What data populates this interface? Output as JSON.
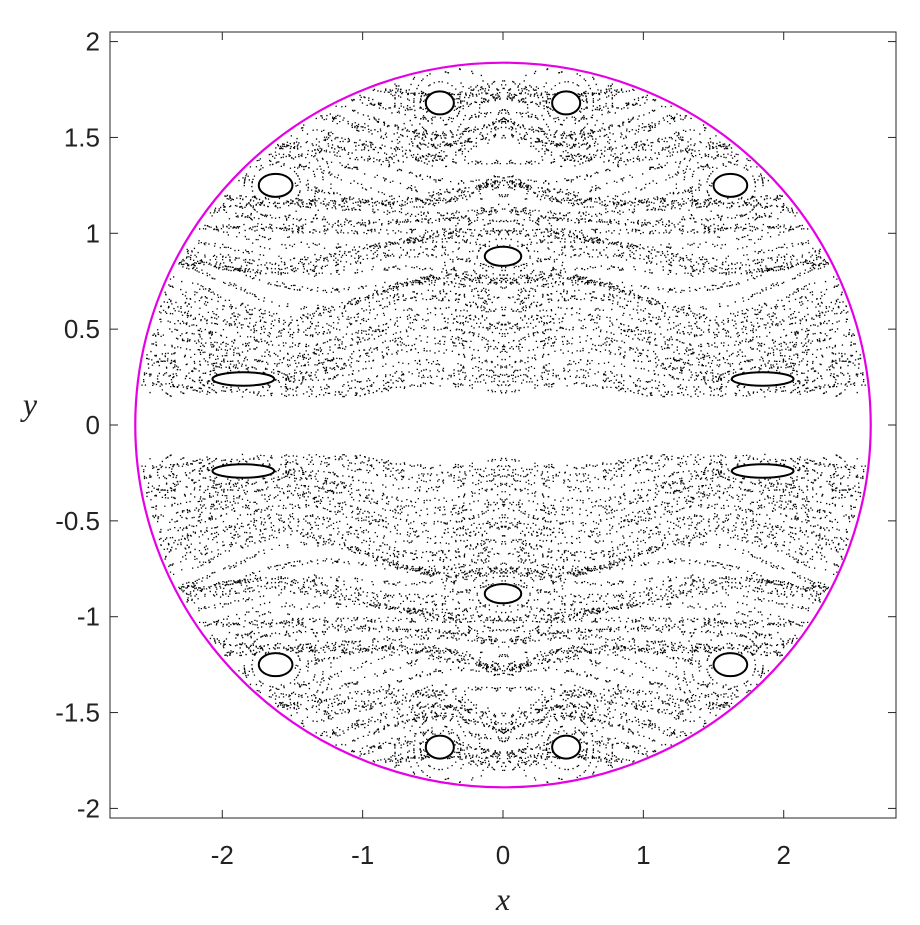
{
  "chart_data": {
    "type": "scatter",
    "title": "",
    "xlabel": "x",
    "ylabel": "y",
    "xlim": [
      -2.8,
      2.8
    ],
    "ylim": [
      -2.05,
      2.05
    ],
    "x_ticks": [
      -2,
      -1,
      0,
      1,
      2
    ],
    "y_ticks": [
      -2,
      -1.5,
      -1,
      -0.5,
      0,
      0.5,
      1,
      1.5,
      2
    ],
    "x_tick_labels": [
      "-2",
      "-1",
      "0",
      "1",
      "2"
    ],
    "y_tick_labels": [
      "-2",
      "-1.5",
      "-1",
      "-0.5",
      "0",
      "0.5",
      "1",
      "1.5",
      "2"
    ],
    "grid": false,
    "series": [
      {
        "kind": "boundary-curve",
        "color": "#e600e6",
        "shape": "ellipse",
        "center": [
          0,
          0
        ],
        "semi_axes": [
          2.62,
          1.89
        ]
      },
      {
        "kind": "poincare-points",
        "color": "#000000",
        "symmetry": "mirror about x and y axes",
        "empty_band_y": [
          -0.14,
          0.14
        ],
        "islands": [
          {
            "x": 0.0,
            "y": 0.88,
            "rx": 0.13,
            "ry": 0.05
          },
          {
            "x": 0.0,
            "y": -0.88,
            "rx": 0.13,
            "ry": 0.05
          },
          {
            "x": -1.62,
            "y": 1.25,
            "rx": 0.12,
            "ry": 0.06
          },
          {
            "x": 1.62,
            "y": 1.25,
            "rx": 0.12,
            "ry": 0.06
          },
          {
            "x": -1.62,
            "y": -1.25,
            "rx": 0.12,
            "ry": 0.06
          },
          {
            "x": 1.62,
            "y": -1.25,
            "rx": 0.12,
            "ry": 0.06
          },
          {
            "x": -0.45,
            "y": 1.68,
            "rx": 0.1,
            "ry": 0.06
          },
          {
            "x": 0.45,
            "y": 1.68,
            "rx": 0.1,
            "ry": 0.06
          },
          {
            "x": -0.45,
            "y": -1.68,
            "rx": 0.1,
            "ry": 0.06
          },
          {
            "x": 0.45,
            "y": -1.68,
            "rx": 0.1,
            "ry": 0.06
          },
          {
            "x": -1.85,
            "y": 0.24,
            "rx": 0.22,
            "ry": 0.035
          },
          {
            "x": 1.85,
            "y": 0.24,
            "rx": 0.22,
            "ry": 0.035
          },
          {
            "x": -1.85,
            "y": -0.24,
            "rx": 0.22,
            "ry": 0.035
          },
          {
            "x": 1.85,
            "y": -0.24,
            "rx": 0.22,
            "ry": 0.035
          }
        ]
      }
    ]
  }
}
